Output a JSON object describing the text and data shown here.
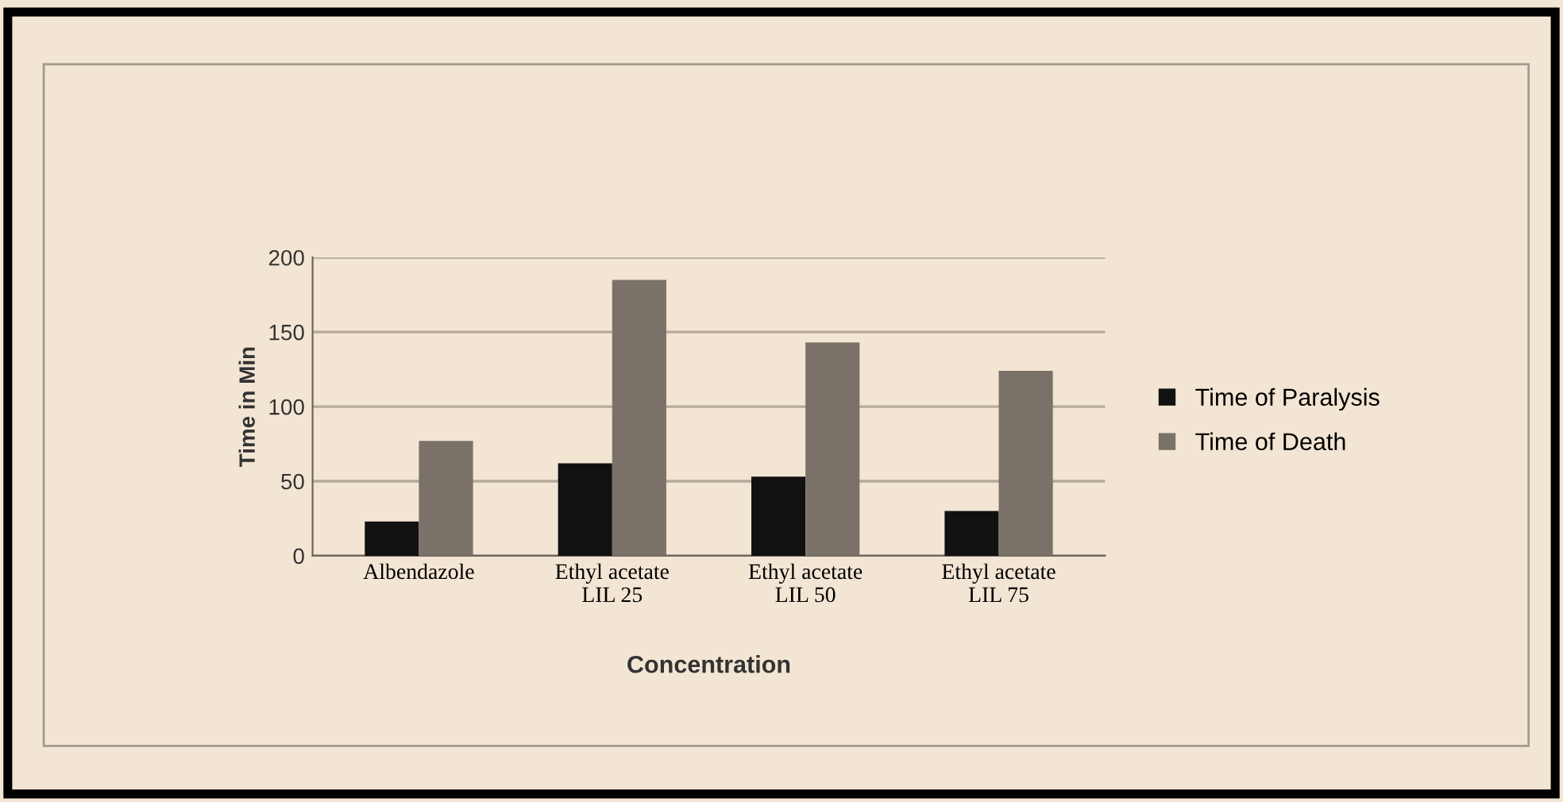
{
  "chart_data": {
    "type": "bar",
    "xlabel": "Concentration",
    "ylabel": "Time in Min",
    "categories": [
      "Albendazole",
      "Ethyl acetate\nLIL 25",
      "Ethyl acetate\nLIL 50",
      "Ethyl acetate\nLIL 75"
    ],
    "series": [
      {
        "name": "Time of Paralysis",
        "color": "#111111",
        "values": [
          23,
          62,
          53,
          30
        ]
      },
      {
        "name": "Time of Death",
        "color": "#7a7268",
        "values": [
          77,
          185,
          143,
          124
        ]
      }
    ],
    "ylim": [
      0,
      200
    ],
    "yticks": [
      0,
      50,
      100,
      150,
      200
    ],
    "grid": "y",
    "legend": "right"
  }
}
